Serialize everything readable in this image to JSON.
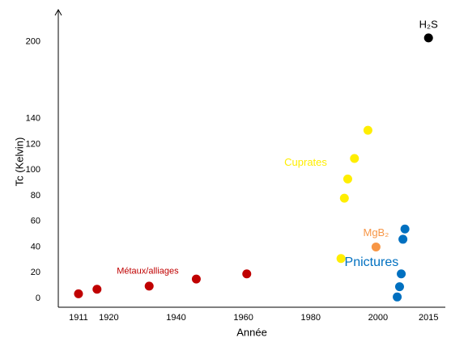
{
  "chart_data": {
    "type": "scatter",
    "x_label": "Année",
    "y_label": "Tc (Kelvin)",
    "xlim": [
      1905,
      2020
    ],
    "ylim": [
      -7,
      225
    ],
    "xticks": [
      1911,
      1920,
      1940,
      1960,
      1980,
      2000,
      2015
    ],
    "yticks": [
      0,
      20,
      40,
      60,
      80,
      100,
      120,
      140,
      200
    ],
    "grid": false,
    "series": [
      {
        "name": "Métaux/alliages",
        "color": "#c00000",
        "x": [
          1911,
          1916.5,
          1932,
          1946,
          1961
        ],
        "values": [
          3.5,
          7,
          9.5,
          15,
          19
        ]
      },
      {
        "name": "Cuprates",
        "color": "#ffee00",
        "x": [
          1989,
          1990,
          1991,
          1993,
          1997
        ],
        "values": [
          31,
          78,
          93,
          109,
          131
        ]
      },
      {
        "name": "MgB₂",
        "color": "#f79646",
        "x": [
          1999.4
        ],
        "values": [
          40
        ]
      },
      {
        "name": "Pnictures",
        "color": "#0070c0",
        "x": [
          2005.7,
          2006.4,
          2006.9,
          2007.4,
          2008
        ],
        "values": [
          1,
          9,
          19,
          46,
          54
        ]
      },
      {
        "name": "H₂S",
        "color": "#000000",
        "x": [
          2015
        ],
        "values": [
          203
        ]
      }
    ]
  }
}
